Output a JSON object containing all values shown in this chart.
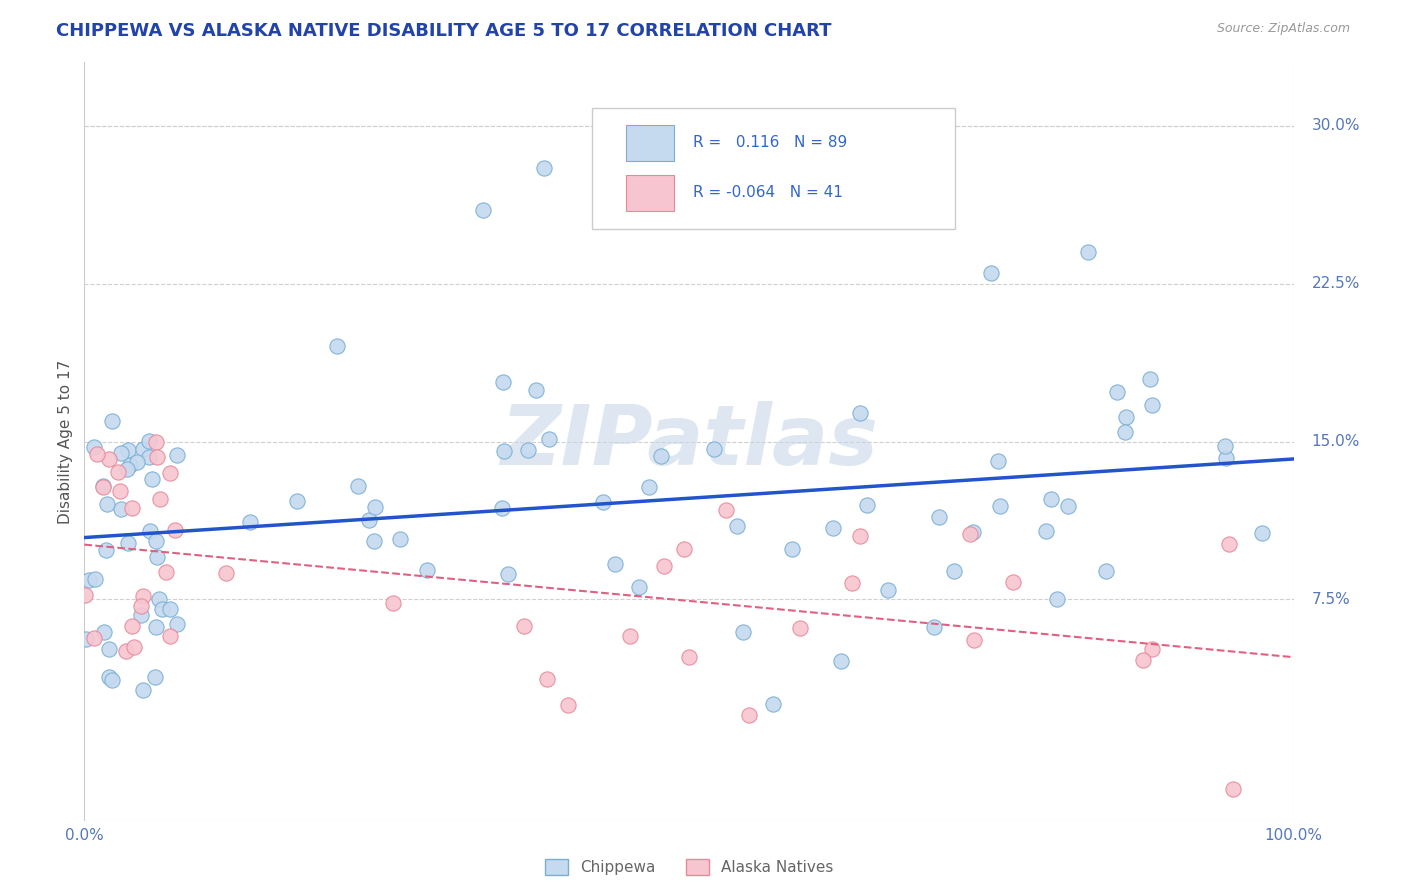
{
  "title": "CHIPPEWA VS ALASKA NATIVE DISABILITY AGE 5 TO 17 CORRELATION CHART",
  "source": "Source: ZipAtlas.com",
  "ylabel": "Disability Age 5 to 17",
  "xlim": [
    0,
    100
  ],
  "ylim": [
    -3,
    33
  ],
  "yticks": [
    0,
    7.5,
    15.0,
    22.5,
    30.0
  ],
  "chippewa_R": 0.116,
  "chippewa_N": 89,
  "alaska_R": -0.064,
  "alaska_N": 41,
  "chippewa_color_face": "#c5d9ef",
  "chippewa_color_edge": "#7aafd4",
  "alaska_color_face": "#f7c5d0",
  "alaska_color_edge": "#e8899a",
  "chippewa_line_color": "#2255cc",
  "alaska_line_color": "#e06080",
  "background_color": "#ffffff",
  "grid_color": "#d0d0d0",
  "title_color": "#2244aa",
  "axis_label_color": "#5577bb",
  "ylabel_color": "#555555",
  "watermark_text": "ZIPatlas",
  "watermark_color": "#c8d8e8",
  "legend_text_color": "#3366cc",
  "bottom_legend_color": "#666666"
}
